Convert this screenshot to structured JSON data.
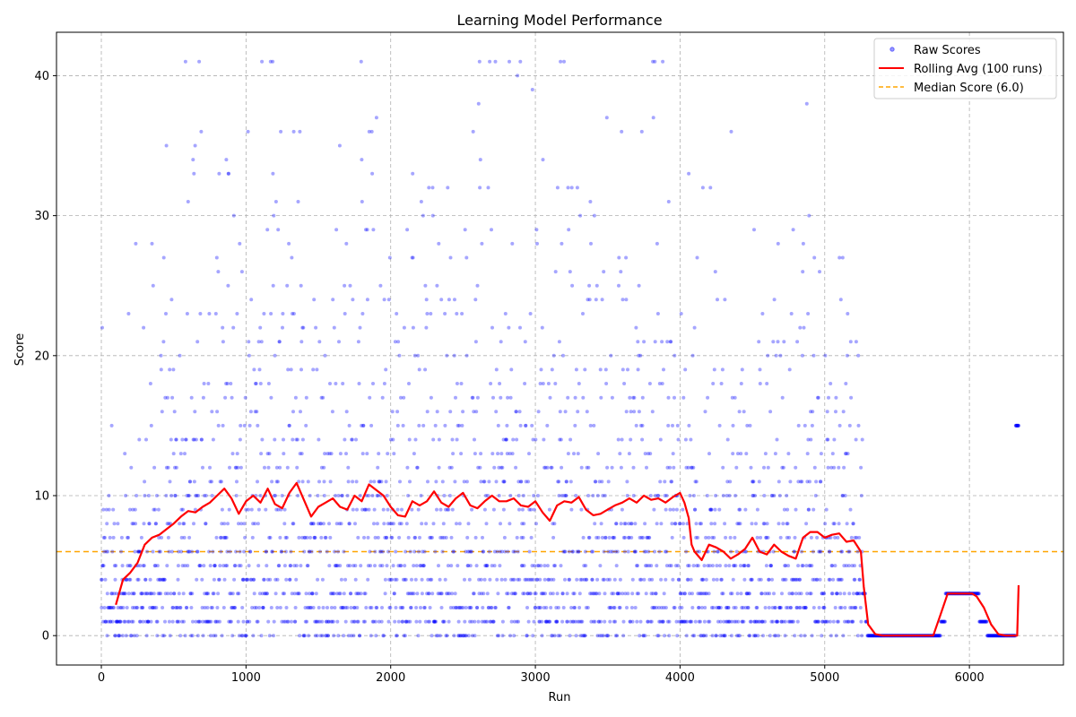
{
  "chart_data": {
    "type": "scatter",
    "title": "Learning Model Performance",
    "xlabel": "Run",
    "ylabel": "Score",
    "xlim": [
      -310,
      6650
    ],
    "ylim": [
      -2.1,
      43.1
    ],
    "xticks": [
      0,
      1000,
      2000,
      3000,
      4000,
      5000,
      6000
    ],
    "yticks": [
      0,
      10,
      20,
      30,
      40
    ],
    "grid": true,
    "legend_position": "top-right",
    "median": 6.0,
    "colors": {
      "raw": "#0000ff",
      "rolling": "#ff0000",
      "median": "#ffa500",
      "grid": "#b0b0b0"
    },
    "legend": [
      "Raw Scores",
      "Rolling Avg (100 runs)",
      "Median Score (6.0)"
    ],
    "series": [
      {
        "name": "Rolling Avg (100 runs)",
        "x": [
          100,
          150,
          200,
          250,
          300,
          350,
          400,
          450,
          500,
          550,
          600,
          650,
          700,
          750,
          800,
          850,
          900,
          950,
          1000,
          1050,
          1100,
          1150,
          1200,
          1250,
          1300,
          1350,
          1400,
          1450,
          1500,
          1550,
          1600,
          1650,
          1700,
          1750,
          1800,
          1850,
          1900,
          1950,
          2000,
          2050,
          2100,
          2150,
          2200,
          2250,
          2300,
          2350,
          2400,
          2450,
          2500,
          2550,
          2600,
          2650,
          2700,
          2750,
          2800,
          2850,
          2900,
          2950,
          3000,
          3050,
          3100,
          3150,
          3200,
          3250,
          3300,
          3350,
          3400,
          3450,
          3500,
          3550,
          3600,
          3650,
          3700,
          3750,
          3800,
          3850,
          3900,
          3950,
          4000,
          4030,
          4060,
          4080,
          4100,
          4150,
          4200,
          4250,
          4300,
          4350,
          4400,
          4450,
          4500,
          4550,
          4600,
          4650,
          4700,
          4750,
          4800,
          4850,
          4900,
          4950,
          5000,
          5050,
          5100,
          5150,
          5200,
          5250,
          5270,
          5300,
          5350,
          5400,
          5500,
          5600,
          5700,
          5750,
          5800,
          5850,
          5900,
          5950,
          6000,
          6020,
          6050,
          6100,
          6150,
          6200,
          6250,
          6300,
          6330,
          6340
        ],
        "y": [
          2.2,
          4.0,
          4.5,
          5.2,
          6.5,
          7.0,
          7.2,
          7.6,
          8.0,
          8.5,
          8.9,
          8.8,
          9.2,
          9.5,
          10.0,
          10.5,
          9.8,
          8.7,
          9.6,
          10.0,
          9.5,
          10.5,
          9.4,
          9.1,
          10.2,
          10.9,
          9.7,
          8.5,
          9.2,
          9.5,
          9.8,
          9.2,
          9.0,
          10.0,
          9.6,
          10.8,
          10.4,
          10.0,
          9.2,
          8.6,
          8.5,
          9.6,
          9.3,
          9.6,
          10.3,
          9.5,
          9.2,
          9.8,
          10.2,
          9.3,
          9.1,
          9.6,
          10.0,
          9.6,
          9.6,
          9.8,
          9.3,
          9.2,
          9.6,
          8.8,
          8.2,
          9.3,
          9.6,
          9.5,
          9.9,
          9.0,
          8.6,
          8.7,
          9.0,
          9.3,
          9.5,
          9.8,
          9.5,
          10.0,
          9.7,
          9.8,
          9.5,
          9.9,
          10.2,
          9.5,
          8.4,
          6.5,
          6.0,
          5.4,
          6.5,
          6.3,
          6.0,
          5.5,
          5.8,
          6.2,
          7.0,
          6.0,
          5.8,
          6.5,
          6.0,
          5.7,
          5.5,
          7.0,
          7.4,
          7.4,
          7.0,
          7.2,
          7.3,
          6.7,
          6.8,
          6.0,
          3.5,
          0.8,
          0.1,
          0.0,
          0.0,
          0.0,
          0.0,
          0.0,
          1.5,
          3.0,
          3.0,
          3.0,
          3.0,
          3.0,
          2.8,
          2.0,
          0.8,
          0.1,
          0.0,
          0.0,
          0.0,
          3.6
        ]
      }
    ]
  }
}
